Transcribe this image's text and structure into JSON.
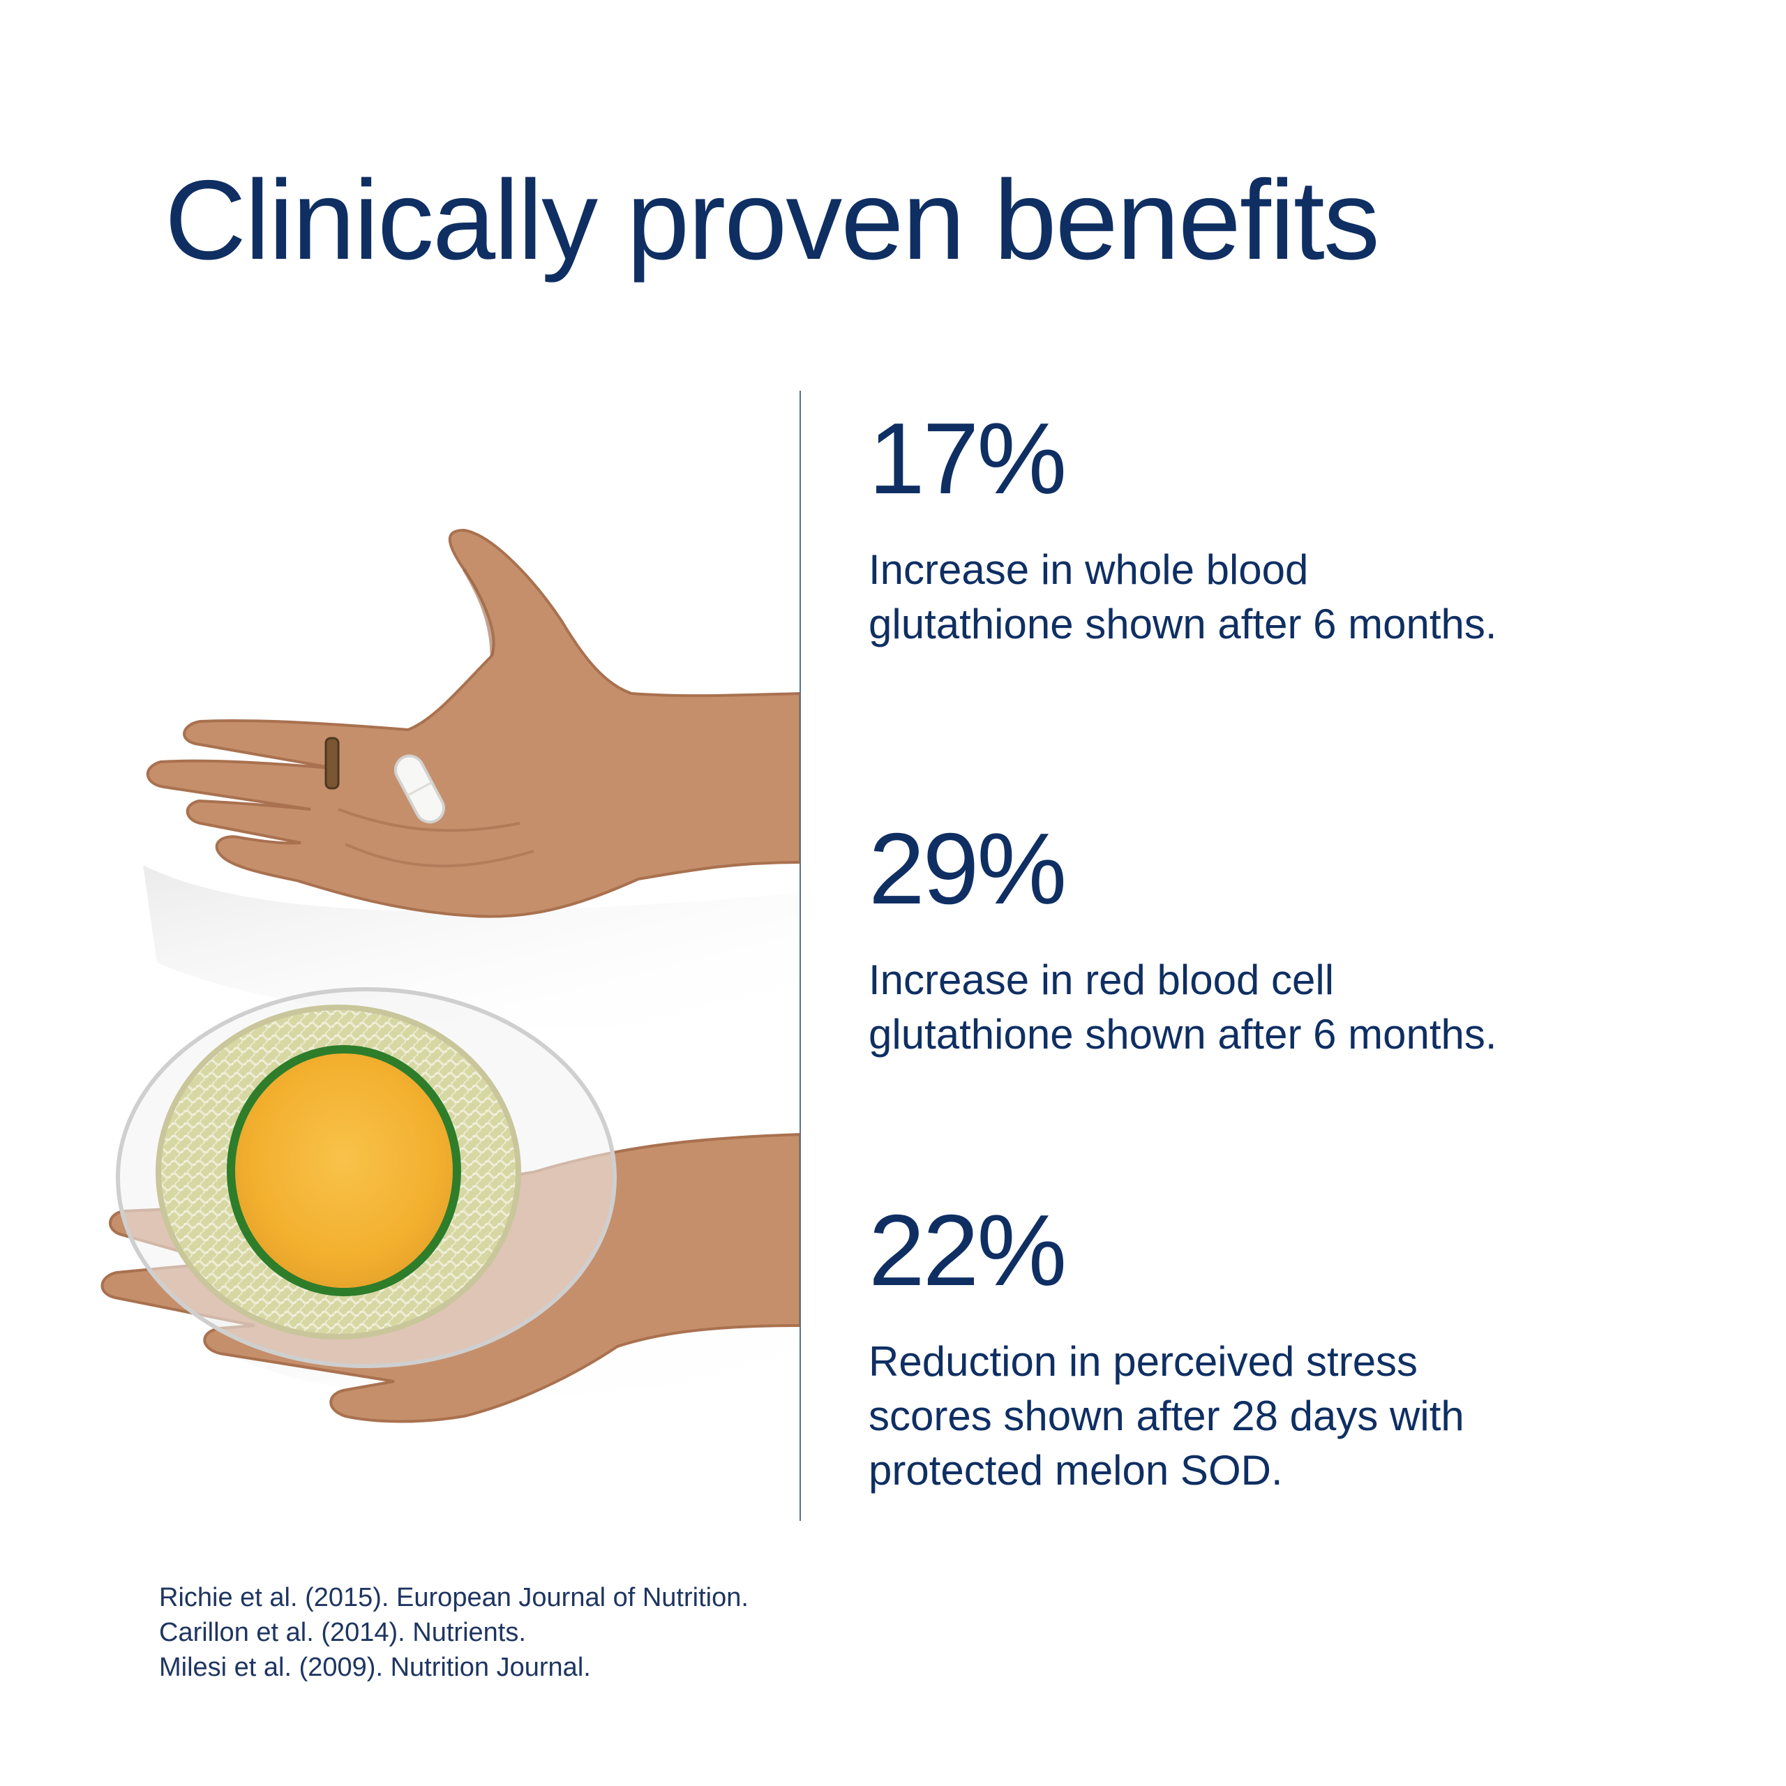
{
  "title": "Clinically proven benefits",
  "stats": [
    {
      "value": "17%",
      "description_lines": [
        "Increase in whole blood",
        "glutathione shown after 6 months."
      ]
    },
    {
      "value": "29%",
      "description_lines": [
        "Increase in red blood cell",
        "glutathione shown after 6 months."
      ]
    },
    {
      "value": "22%",
      "description_lines": [
        "Reduction in perceived stress",
        "scores shown after 28 days with",
        "protected melon SOD."
      ]
    }
  ],
  "references": [
    "Richie et al. (2015). European Journal of Nutrition.",
    "Carillon et al. (2014). Nutrients.",
    "Milesi et al. (2009). Nutrition Journal."
  ],
  "colors": {
    "navy": "#0f2f63",
    "divider": "#5b6f85",
    "skin": "#c38d6b",
    "melon_flesh": "#f6b533",
    "melon_rind": "#2e7d2a"
  },
  "photo": {
    "icon": "hands-with-capsule-and-melon-photo"
  }
}
